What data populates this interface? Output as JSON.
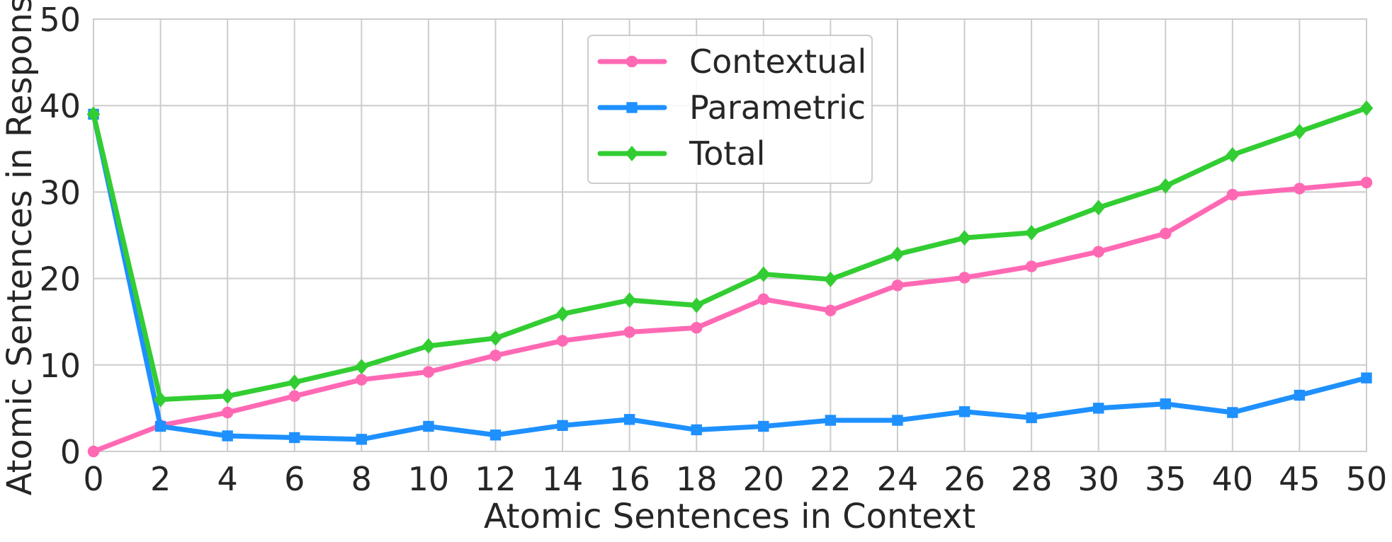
{
  "chart_data": {
    "type": "line",
    "categories": [
      "0",
      "2",
      "4",
      "6",
      "8",
      "10",
      "12",
      "14",
      "16",
      "18",
      "20",
      "22",
      "24",
      "26",
      "28",
      "30",
      "35",
      "40",
      "45",
      "50"
    ],
    "xlabel": "Atomic Sentences in Context",
    "ylabel": "Atomic Sentences in Response",
    "ylim": [
      0,
      50
    ],
    "yticks": [
      "0",
      "10",
      "20",
      "30",
      "40",
      "50"
    ],
    "grid": true,
    "legend_position": "top-center",
    "series": [
      {
        "name": "Contextual",
        "color": "#ff69b4",
        "marker": "circle",
        "values": [
          0,
          3.0,
          4.5,
          6.4,
          8.3,
          9.2,
          11.1,
          12.8,
          13.8,
          14.3,
          17.6,
          16.3,
          19.2,
          20.1,
          21.4,
          23.1,
          25.2,
          29.7,
          30.4,
          31.1
        ]
      },
      {
        "name": "Parametric",
        "color": "#1e90ff",
        "marker": "square",
        "values": [
          39.0,
          2.9,
          1.8,
          1.6,
          1.4,
          2.9,
          1.9,
          3.0,
          3.7,
          2.5,
          2.9,
          3.6,
          3.6,
          4.6,
          3.9,
          5.0,
          5.5,
          4.5,
          6.5,
          8.5
        ]
      },
      {
        "name": "Total",
        "color": "#32cd32",
        "marker": "diamond",
        "values": [
          39.0,
          6.0,
          6.4,
          8.0,
          9.8,
          12.2,
          13.1,
          15.9,
          17.5,
          16.9,
          20.5,
          19.9,
          22.8,
          24.7,
          25.3,
          28.2,
          30.7,
          34.3,
          37.0,
          39.7
        ]
      }
    ]
  }
}
